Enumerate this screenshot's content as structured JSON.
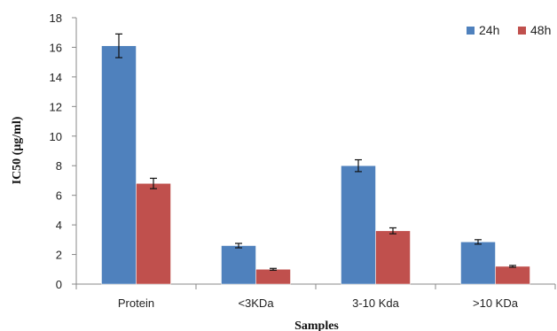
{
  "chart_data": {
    "type": "bar",
    "title": "",
    "xlabel": "Samples",
    "ylabel": "IC50 (μg/ml)",
    "categories": [
      "Protein",
      "<3KDa",
      "3-10 Kda",
      ">10 KDa"
    ],
    "ylim": [
      0,
      18
    ],
    "yticks": [
      0,
      2,
      4,
      6,
      8,
      10,
      12,
      14,
      16,
      18
    ],
    "grid": false,
    "legend_position": "top-right",
    "series": [
      {
        "name": "24h",
        "color": "#4f81bd",
        "values": [
          16.1,
          2.6,
          8.0,
          2.85
        ],
        "errors": [
          0.8,
          0.15,
          0.4,
          0.15
        ]
      },
      {
        "name": "48h",
        "color": "#c0504d",
        "values": [
          6.8,
          1.0,
          3.6,
          1.2
        ],
        "errors": [
          0.35,
          0.06,
          0.2,
          0.06
        ]
      }
    ]
  }
}
